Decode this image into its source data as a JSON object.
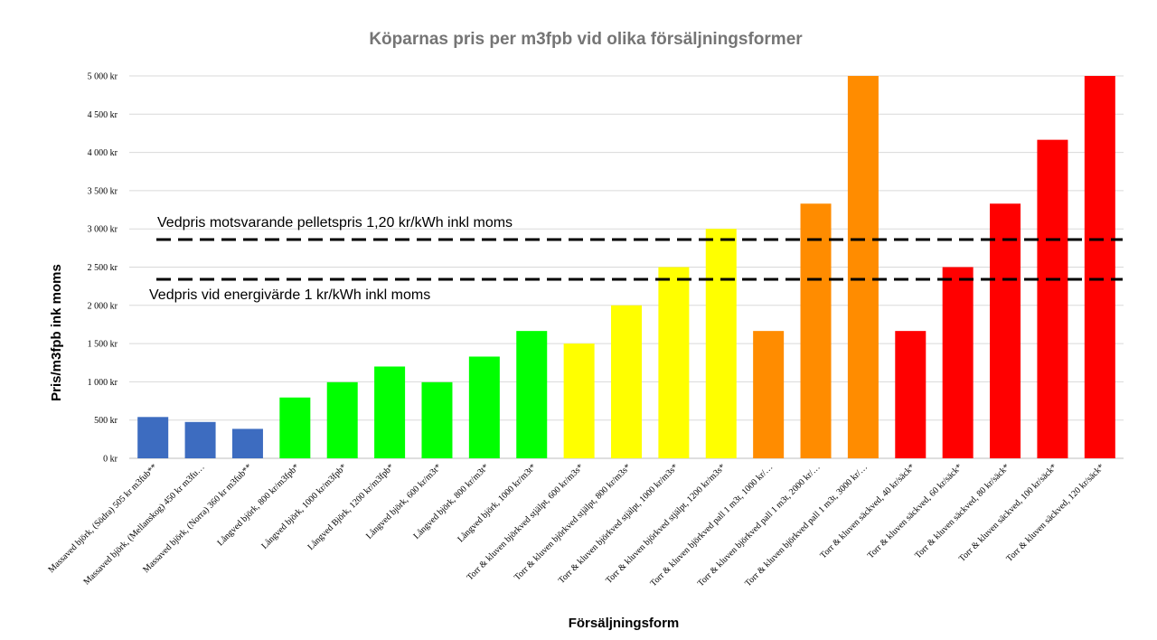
{
  "chart_data": {
    "type": "bar",
    "title": "Köparnas pris per m3fpb vid olika försäljningsformer",
    "xlabel": "Försäljningsform",
    "ylabel": "Pris/m3fpb ink moms",
    "ylim": [
      0,
      5000
    ],
    "yticks": [
      0,
      500,
      1000,
      1500,
      2000,
      2500,
      3000,
      3500,
      4000,
      4500,
      5000
    ],
    "ytick_labels": [
      "0 kr",
      "500 kr",
      "1 000 kr",
      "1 500 kr",
      "2 000 kr",
      "2 500 kr",
      "3 000 kr",
      "3 500 kr",
      "4 000 kr",
      "4 500 kr",
      "5 000 kr"
    ],
    "grid": true,
    "legend": "none",
    "categories": [
      "Massaved björk, (Södra) 505 kr m3fub**",
      "Massaved björk, (Mellanskog) 450 kr m3fu…",
      "Massaved björk, (Norra) 360 kr m3fub**",
      "Långved björk, 800 kr/m3fpb*",
      "Långved björk, 1000 kr/m3fpb*",
      "Långved Björk, 1200 kr/m3fpb*",
      "Långved björk, 600 kr/m3t*",
      "Långved björk, 800 kr/m3t*",
      "Långved björk, 1000 kr/m3t*",
      "Torr & kluven björkved stjälpt, 600 kr/m3s*",
      "Torr & kluven björkved stjälpt, 800 kr/m3s*",
      "Torr & kluven björkved stjälpt, 1000 kr/m3s*",
      "Torr & kluven björkved stjälpt, 1200 kr/m3s*",
      "Torr & kluven björkved pall 1 m3t, 1000 kr/…",
      "Torr & kluven björkved pall 1 m3t, 2000 kr/…",
      "Torr & kluven björkved pall 1 m3t, 3000 kr/…",
      "Torr & kluven säckved, 40 kr/säck*",
      "Torr & kluven säckved, 60 kr/säck*",
      "Torr & kluven säckved, 80 kr/säck*",
      "Torr & kluven säckved, 100 kr/säck*",
      "Torr & kluven säckved, 120 kr/säck*"
    ],
    "values": [
      540,
      475,
      385,
      795,
      995,
      1200,
      995,
      1330,
      1665,
      1500,
      2000,
      2500,
      3000,
      1665,
      3330,
      5000,
      1665,
      2500,
      3330,
      4165,
      5000
    ],
    "bar_colors": [
      "#3d6cc0",
      "#3d6cc0",
      "#3d6cc0",
      "#00ff00",
      "#00ff00",
      "#00ff00",
      "#00ff00",
      "#00ff00",
      "#00ff00",
      "#ffff00",
      "#ffff00",
      "#ffff00",
      "#ffff00",
      "#ff8c00",
      "#ff8c00",
      "#ff8c00",
      "#ff0000",
      "#ff0000",
      "#ff0000",
      "#ff0000",
      "#ff0000"
    ],
    "reference_lines": [
      {
        "label": "Vedpris motsvarande pelletspris 1,20 kr/kWh inkl moms",
        "value": 2860
      },
      {
        "label": "Vedpris vid energivärde 1 kr/kWh inkl moms",
        "value": 2340
      }
    ]
  }
}
